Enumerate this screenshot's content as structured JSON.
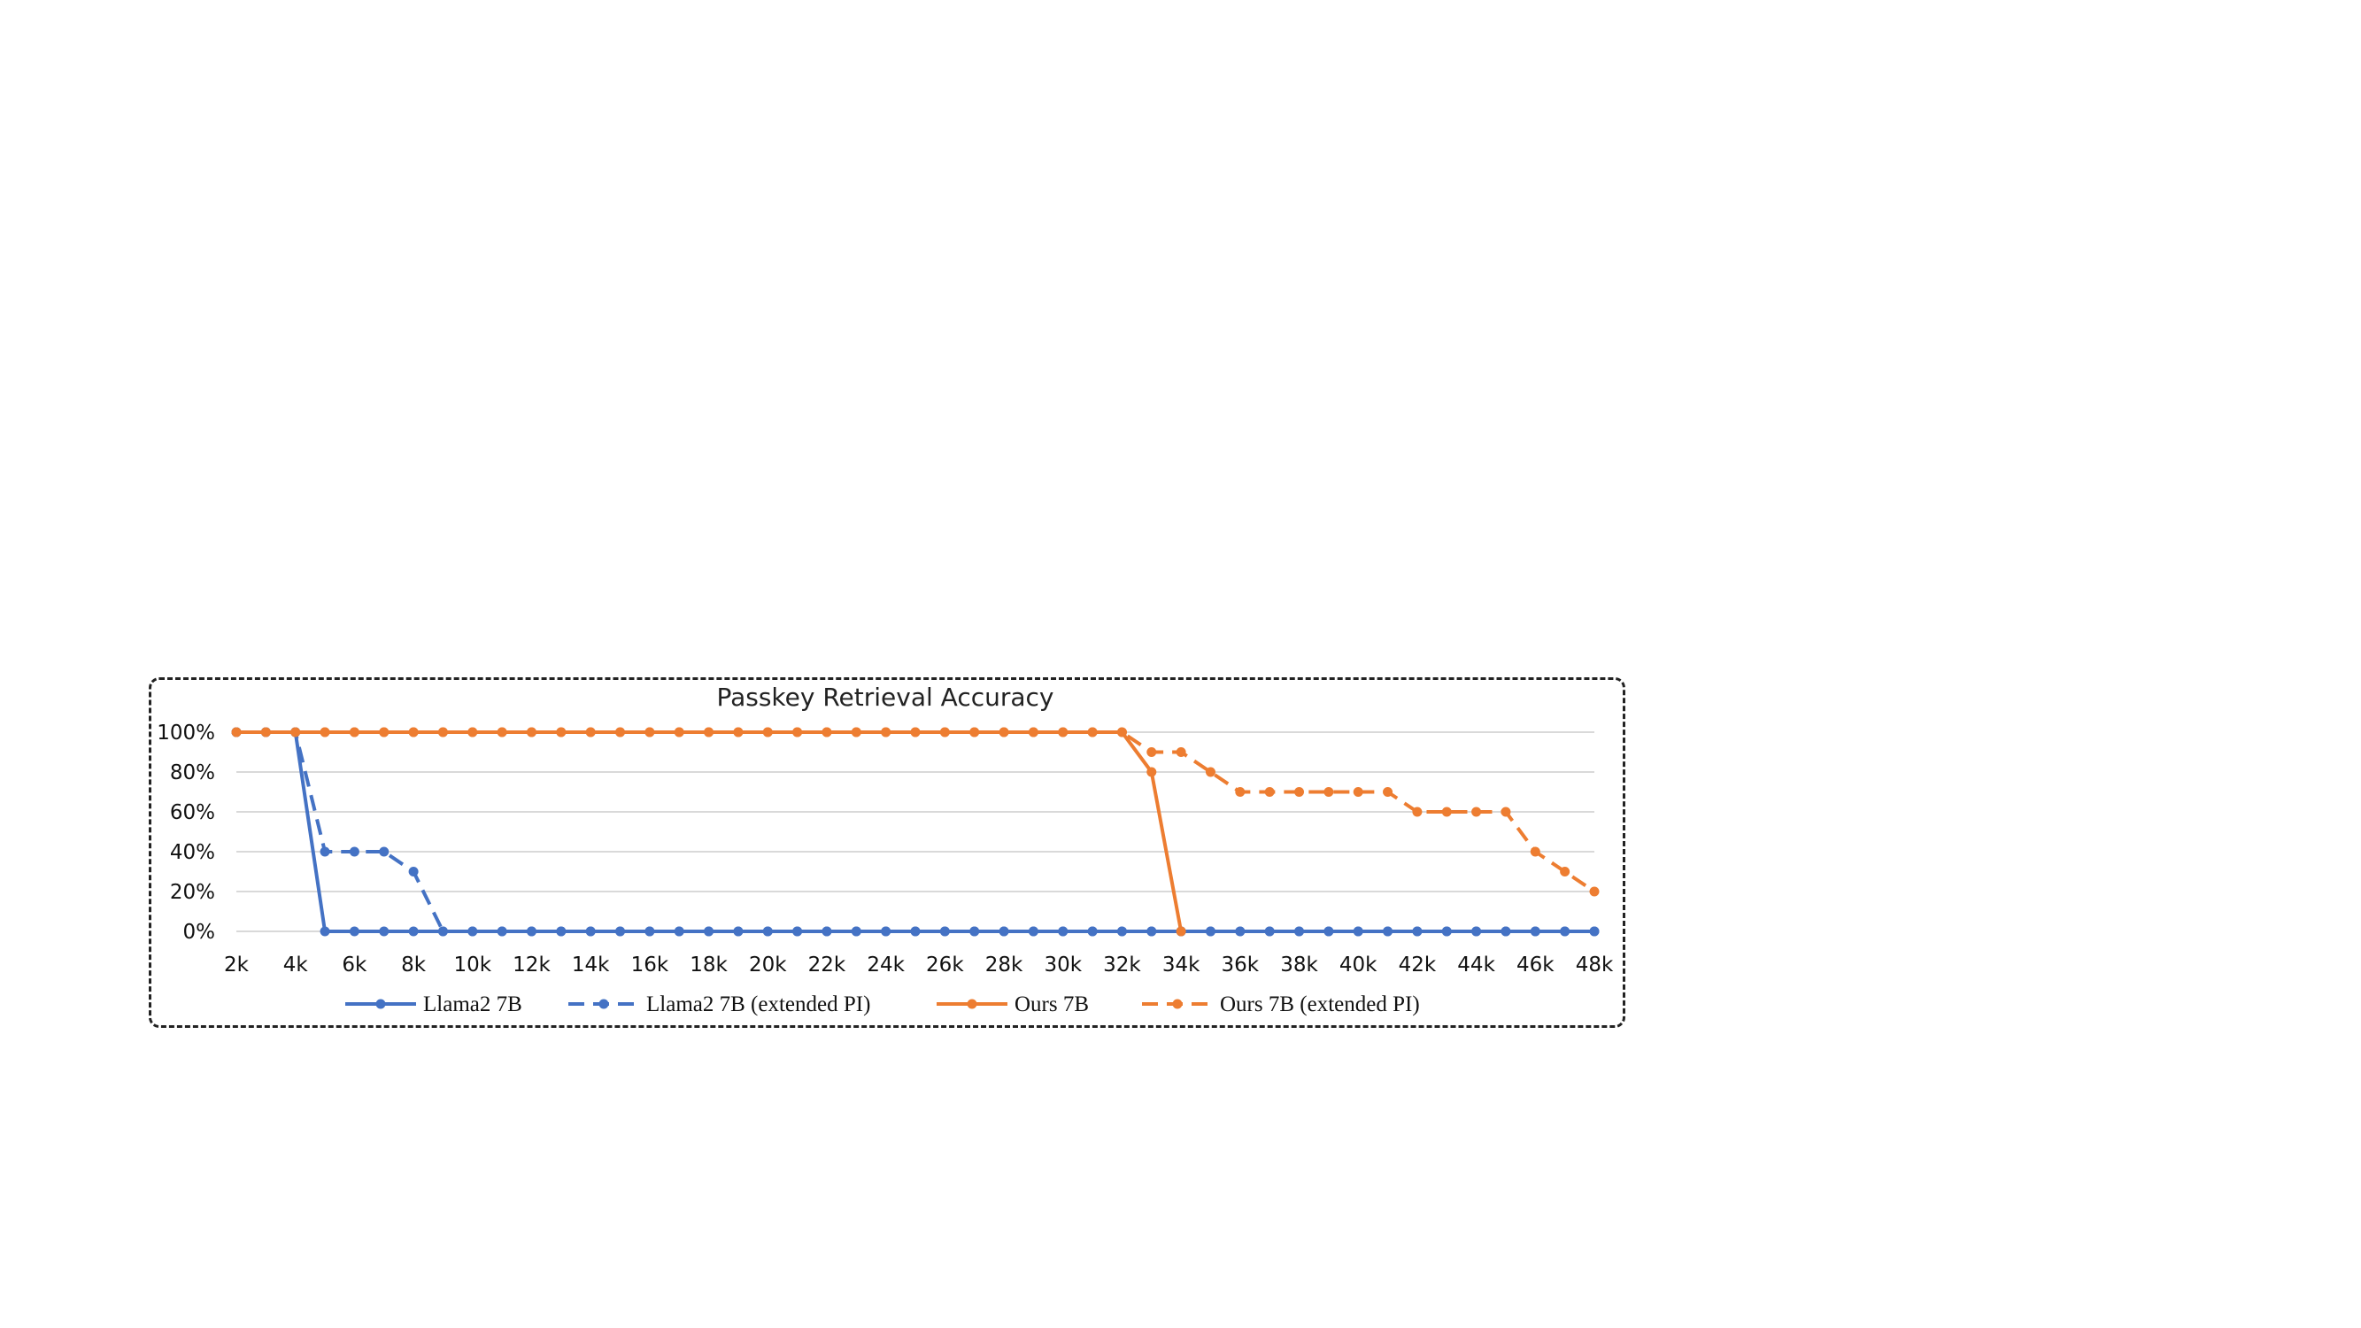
{
  "chart_data": {
    "type": "line",
    "title": "Passkey Retrieval Accuracy",
    "xlabel": "",
    "ylabel": "",
    "x_tick_labels": [
      "2k",
      "4k",
      "6k",
      "8k",
      "10k",
      "12k",
      "14k",
      "16k",
      "18k",
      "20k",
      "22k",
      "24k",
      "26k",
      "28k",
      "30k",
      "32k",
      "34k",
      "36k",
      "38k",
      "40k",
      "42k",
      "44k",
      "46k",
      "48k"
    ],
    "x": [
      "2k",
      "3k",
      "4k",
      "5k",
      "6k",
      "7k",
      "8k",
      "9k",
      "10k",
      "11k",
      "12k",
      "13k",
      "14k",
      "15k",
      "16k",
      "17k",
      "18k",
      "19k",
      "20k",
      "21k",
      "22k",
      "23k",
      "24k",
      "25k",
      "26k",
      "27k",
      "28k",
      "29k",
      "30k",
      "31k",
      "32k",
      "33k",
      "34k",
      "35k",
      "36k",
      "37k",
      "38k",
      "39k",
      "40k",
      "41k",
      "42k",
      "43k",
      "44k",
      "45k",
      "46k",
      "47k",
      "48k"
    ],
    "y_ticks": [
      "0%",
      "20%",
      "40%",
      "60%",
      "80%",
      "100%"
    ],
    "ylim": [
      0,
      100
    ],
    "grid": "horizontal",
    "legend_position": "bottom",
    "series": [
      {
        "name": "Llama2 7B",
        "color": "#4472C4",
        "dash": "solid",
        "values": [
          100,
          100,
          100,
          0,
          0,
          0,
          0,
          0,
          0,
          0,
          0,
          0,
          0,
          0,
          0,
          0,
          0,
          0,
          0,
          0,
          0,
          0,
          0,
          0,
          0,
          0,
          0,
          0,
          0,
          0,
          0,
          0,
          0,
          0,
          0,
          0,
          0,
          0,
          0,
          0,
          0,
          0,
          0,
          0,
          0,
          0,
          0
        ]
      },
      {
        "name": "Llama2 7B (extended PI)",
        "color": "#4472C4",
        "dash": "dashed",
        "values": [
          100,
          100,
          100,
          40,
          40,
          40,
          30,
          0,
          0,
          0,
          0,
          0,
          0,
          0,
          0,
          0,
          0,
          0,
          0,
          0,
          0,
          0,
          0,
          0,
          0,
          0,
          0,
          0,
          0,
          0,
          0,
          0,
          0,
          0,
          0,
          0,
          0,
          0,
          0,
          0,
          0,
          0,
          0,
          0,
          0,
          0,
          0
        ]
      },
      {
        "name": "Ours 7B",
        "color": "#ED7D31",
        "dash": "solid",
        "values": [
          100,
          100,
          100,
          100,
          100,
          100,
          100,
          100,
          100,
          100,
          100,
          100,
          100,
          100,
          100,
          100,
          100,
          100,
          100,
          100,
          100,
          100,
          100,
          100,
          100,
          100,
          100,
          100,
          100,
          100,
          100,
          80,
          0,
          null,
          null,
          null,
          null,
          null,
          null,
          null,
          null,
          null,
          null,
          null,
          null,
          null,
          null
        ]
      },
      {
        "name": "Ours 7B (extended PI)",
        "color": "#ED7D31",
        "dash": "dashed",
        "values": [
          100,
          100,
          100,
          100,
          100,
          100,
          100,
          100,
          100,
          100,
          100,
          100,
          100,
          100,
          100,
          100,
          100,
          100,
          100,
          100,
          100,
          100,
          100,
          100,
          100,
          100,
          100,
          100,
          100,
          100,
          100,
          90,
          90,
          80,
          70,
          70,
          70,
          70,
          70,
          70,
          60,
          60,
          60,
          60,
          40,
          30,
          20
        ]
      }
    ]
  }
}
